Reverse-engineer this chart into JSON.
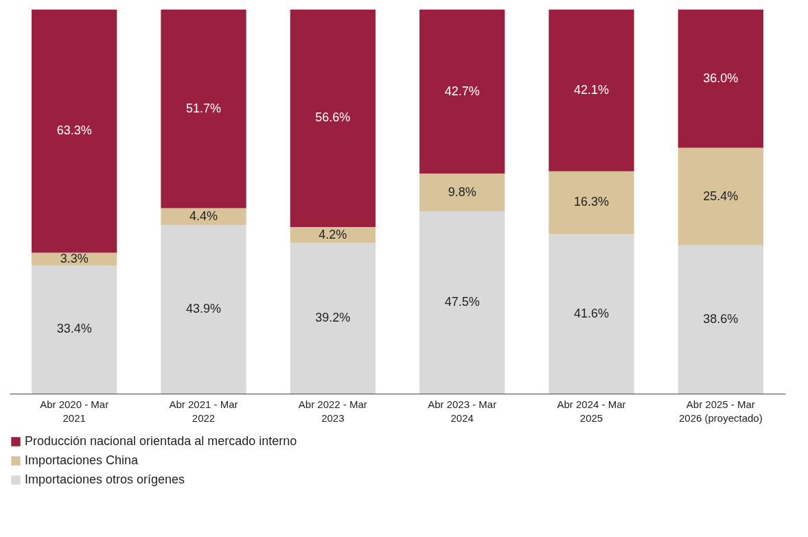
{
  "chart_data": {
    "type": "bar",
    "stacked": true,
    "legend": "bottom",
    "categories": [
      "Abr 2020 - Mar 2021",
      "Abr 2021 - Mar 2022",
      "Abr 2022 - Mar 2023",
      "Abr 2023 - Mar 2024",
      "Abr 2024 - Mar 2025",
      "Abr 2025 - Mar 2026 (proyectado)"
    ],
    "series": [
      {
        "name": "Importaciones otros orígenes",
        "color": "#d9d9d9",
        "values": [
          33.4,
          43.9,
          39.2,
          47.5,
          41.6,
          38.6
        ],
        "value_labels": [
          "33.4%",
          "43.9%",
          "39.2%",
          "47.5%",
          "41.6%",
          "38.6%"
        ]
      },
      {
        "name": "Importaciones China",
        "color": "#d9c39a",
        "values": [
          3.3,
          4.4,
          4.2,
          9.8,
          16.3,
          25.4
        ],
        "value_labels": [
          "3.3%",
          "4.4%",
          "4.2%",
          "9.8%",
          "16.3%",
          "25.4%"
        ]
      },
      {
        "name": "Producción nacional orientada al mercado interno",
        "color": "#9b1f3f",
        "values": [
          63.3,
          51.7,
          56.6,
          42.7,
          42.1,
          36.0
        ],
        "value_labels": [
          "63.3%",
          "51.7%",
          "56.6%",
          "42.7%",
          "42.1%",
          "36.0%"
        ]
      }
    ]
  }
}
